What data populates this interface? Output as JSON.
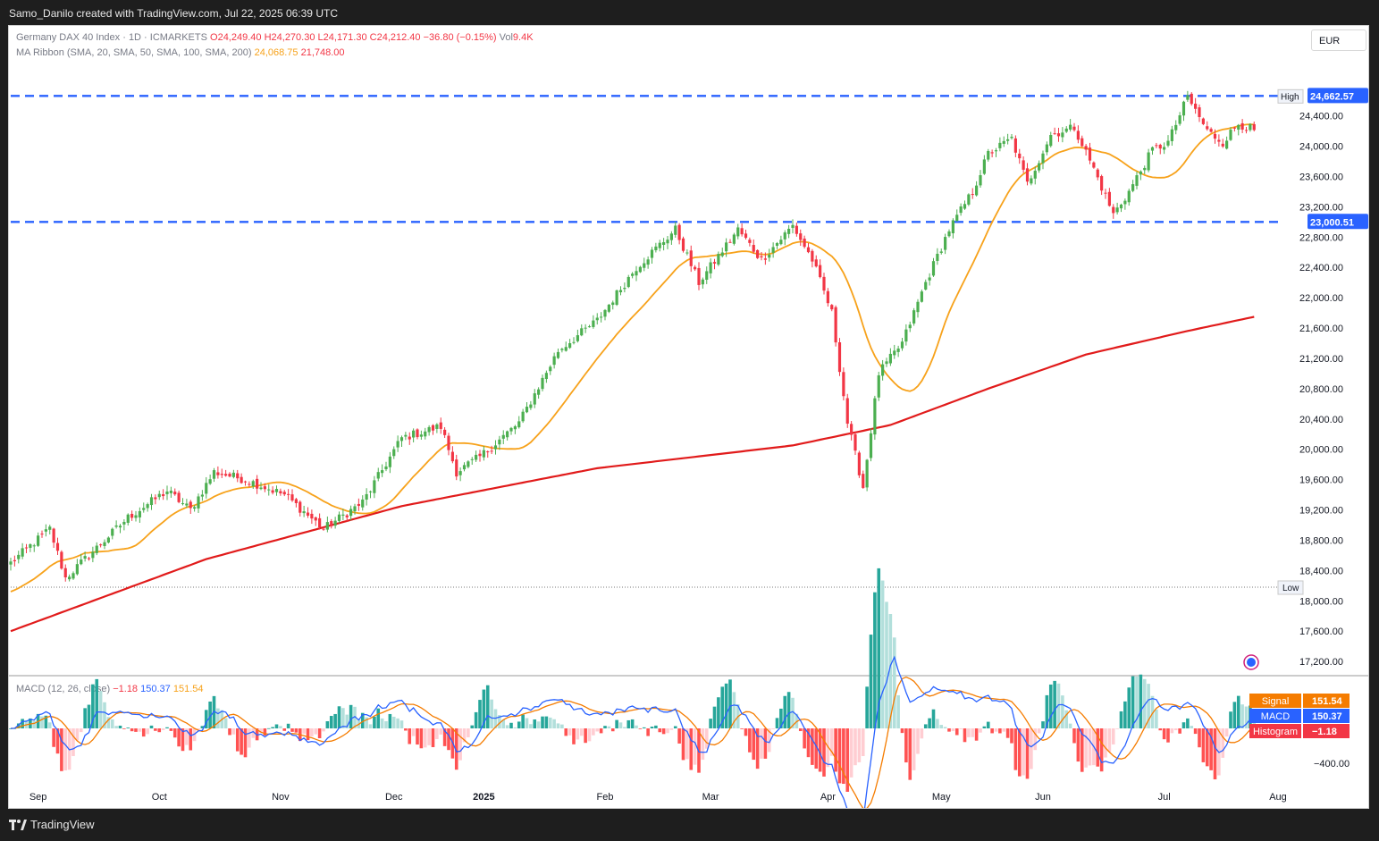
{
  "header": {
    "attribution": "Samo_Danilo created with TradingView.com, Jul 22, 2025 06:39 UTC"
  },
  "legend": {
    "symbol": "Germany DAX 40 Index · 1D · ICMARKETS",
    "open": "O24,249.40",
    "high": "H24,270.30",
    "low": "L24,171.30",
    "close": "C24,212.40",
    "change": "−36.80 (−0.15%)",
    "volume_label": "Vol",
    "volume": "9.4K",
    "ma_label": "MA Ribbon (SMA, 20, SMA, 50, SMA, 100, SMA, 200)",
    "ma20": "24,068.75",
    "ma200": "21,748.00",
    "macd_label": "MACD (12, 26, close)",
    "macd_hist": "−1.18",
    "macd_macd": "150.37",
    "macd_signal": "151.54"
  },
  "currency": "EUR",
  "footer": {
    "brand": "TradingView"
  },
  "colors": {
    "up": "#26a69a",
    "down": "#ef5350",
    "candle_up": "#4caf50",
    "candle_down": "#f23645",
    "ma20": "#f7a21b",
    "ma200": "#e11b1b",
    "level": "#2962ff",
    "macd": "#2962ff",
    "signal": "#f57c00"
  },
  "chart_data": [
    {
      "type": "candlestick",
      "title": "Germany DAX 40 Index · 1D · ICMARKETS",
      "y_ticks": [
        17200,
        17600,
        18000,
        18400,
        18800,
        19200,
        19600,
        20000,
        20400,
        20800,
        21200,
        21600,
        22000,
        22400,
        22800,
        23200,
        23600,
        24000,
        24400
      ],
      "y_tick_labels": [
        "17,200.00",
        "17,600.00",
        "18,000.00",
        "18,400.00",
        "18,800.00",
        "19,200.00",
        "19,600.00",
        "20,000.00",
        "20,400.00",
        "20,800.00",
        "21,200.00",
        "21,600.00",
        "22,000.00",
        "22,400.00",
        "22,800.00",
        "23,200.00",
        "23,600.00",
        "24,000.00",
        "24,400.00"
      ],
      "x_labels": [
        "Sep",
        "Oct",
        "Nov",
        "Dec",
        "2025",
        "Feb",
        "Mar",
        "Apr",
        "May",
        "Jun",
        "Jul",
        "Aug"
      ],
      "levels": [
        {
          "value": 24662.57,
          "label": "24,662.57",
          "tag": "High"
        },
        {
          "value": 23000.51,
          "label": "23,000.51",
          "tag": ""
        }
      ],
      "low_level": {
        "value": 18180,
        "tag": "Low"
      },
      "series": [
        {
          "name": "Close",
          "anchors": [
            [
              0,
              18500
            ],
            [
              10,
              18950
            ],
            [
              14,
              18300
            ],
            [
              20,
              18600
            ],
            [
              30,
              19100
            ],
            [
              40,
              19450
            ],
            [
              46,
              19200
            ],
            [
              52,
              19700
            ],
            [
              60,
              19600
            ],
            [
              70,
              19400
            ],
            [
              80,
              18950
            ],
            [
              90,
              19300
            ],
            [
              100,
              20150
            ],
            [
              110,
              20300
            ],
            [
              114,
              19700
            ],
            [
              120,
              19900
            ],
            [
              130,
              20350
            ],
            [
              140,
              21300
            ],
            [
              150,
              21700
            ],
            [
              160,
              22400
            ],
            [
              170,
              22900
            ],
            [
              176,
              22200
            ],
            [
              186,
              22900
            ],
            [
              192,
              22500
            ],
            [
              200,
              22950
            ],
            [
              205,
              22500
            ],
            [
              210,
              21800
            ],
            [
              214,
              20350
            ],
            [
              218,
              19500
            ],
            [
              222,
              21000
            ],
            [
              228,
              21400
            ],
            [
              234,
              22200
            ],
            [
              240,
              22900
            ],
            [
              246,
              23400
            ],
            [
              250,
              23900
            ],
            [
              256,
              24100
            ],
            [
              260,
              23500
            ],
            [
              266,
              24150
            ],
            [
              272,
              24250
            ],
            [
              277,
              23700
            ],
            [
              282,
              23100
            ],
            [
              286,
              23400
            ],
            [
              292,
              23950
            ],
            [
              296,
              24050
            ],
            [
              301,
              24650
            ],
            [
              306,
              24200
            ],
            [
              310,
              24050
            ],
            [
              314,
              24300
            ],
            [
              318,
              24212
            ]
          ]
        },
        {
          "name": "SMA 20",
          "values_ref": "derived from Close",
          "last": 24068.75
        },
        {
          "name": "SMA 200",
          "anchors": [
            [
              0,
              17600
            ],
            [
              50,
              18550
            ],
            [
              100,
              19250
            ],
            [
              150,
              19750
            ],
            [
              200,
              20050
            ],
            [
              225,
              20320
            ],
            [
              250,
              20800
            ],
            [
              275,
              21250
            ],
            [
              300,
              21550
            ],
            [
              318,
              21748
            ]
          ]
        }
      ]
    },
    {
      "type": "bar",
      "title": "MACD (12, 26, close)",
      "y_ticks": [
        -400
      ],
      "y_tick_labels": [
        "−400.00"
      ],
      "values_tags": [
        {
          "name": "Signal",
          "value": "151.54"
        },
        {
          "name": "MACD",
          "value": "150.37"
        },
        {
          "name": "Histogram",
          "value": "−1.18"
        }
      ]
    }
  ]
}
